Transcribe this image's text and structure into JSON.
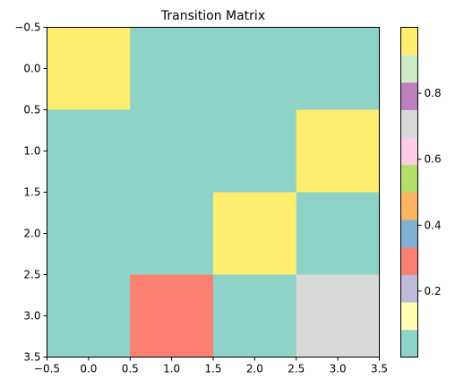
{
  "chart_data": {
    "type": "heatmap",
    "title": "Transition Matrix",
    "xlabel": "",
    "ylabel": "",
    "xlim": [
      -0.5,
      3.5
    ],
    "ylim": [
      3.5,
      -0.5
    ],
    "x_ticks": [
      "−0.5",
      "0.0",
      "0.5",
      "1.0",
      "1.5",
      "2.0",
      "2.5",
      "3.0",
      "3.5"
    ],
    "x_tick_values": [
      -0.5,
      0.0,
      0.5,
      1.0,
      1.5,
      2.0,
      2.5,
      3.0,
      3.5
    ],
    "y_ticks": [
      "−0.5",
      "0.0",
      "0.5",
      "1.0",
      "1.5",
      "2.0",
      "2.5",
      "3.0",
      "3.5"
    ],
    "y_tick_values": [
      -0.5,
      0.0,
      0.5,
      1.0,
      1.5,
      2.0,
      2.5,
      3.0,
      3.5
    ],
    "matrix": [
      [
        1.0,
        0.0,
        0.0,
        0.0
      ],
      [
        0.0,
        0.0,
        0.0,
        1.0
      ],
      [
        0.0,
        0.0,
        1.0,
        0.0
      ],
      [
        0.0,
        0.3,
        0.0,
        0.7
      ]
    ],
    "colormap": "Set3",
    "vmin": 0.0,
    "vmax": 1.0,
    "colorbar": {
      "ticks": [
        "0.2",
        "0.4",
        "0.6",
        "0.8"
      ],
      "tick_values": [
        0.2,
        0.4,
        0.6,
        0.8
      ],
      "colors": [
        "#8dd3c7",
        "#ffffb3",
        "#bebada",
        "#fb8072",
        "#80b1d3",
        "#fdb462",
        "#b3de69",
        "#fccde5",
        "#d9d9d9",
        "#bc80bd",
        "#ccebc5",
        "#ffed6f"
      ]
    },
    "grid": false
  }
}
